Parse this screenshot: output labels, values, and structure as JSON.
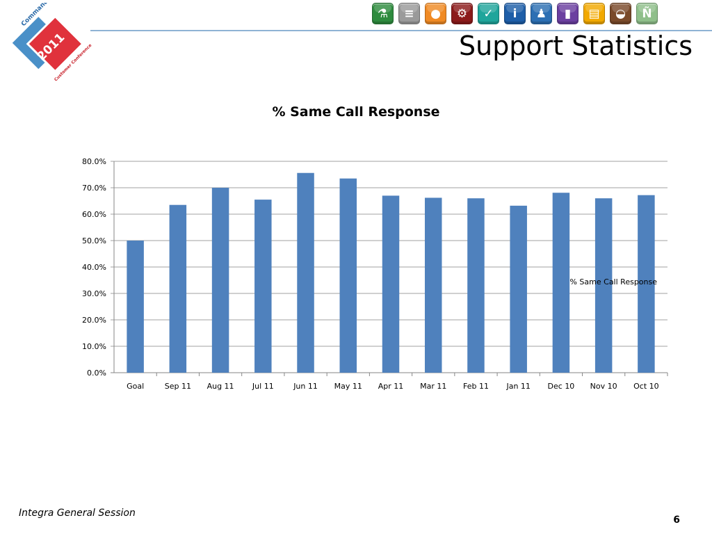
{
  "slide": {
    "title": "Support Statistics",
    "footer": "Integra General Session",
    "page_number": "6"
  },
  "logo": {
    "brand": "Command Alkon",
    "year": "2011",
    "subtitle": "Customer Conference",
    "colors": {
      "blue": "#4a90c8",
      "red": "#e0323c"
    }
  },
  "toolbar": {
    "icons": [
      {
        "name": "flask-icon",
        "color": "#2e8b3e",
        "glyph": "⚗"
      },
      {
        "name": "stack-icon",
        "color": "#9a9a9a",
        "glyph": "≡"
      },
      {
        "name": "cookie-icon",
        "color": "#f08a24",
        "glyph": "●"
      },
      {
        "name": "gears-icon",
        "color": "#8b1a1a",
        "glyph": "⚙"
      },
      {
        "name": "check-icon",
        "color": "#1fa59b",
        "glyph": "✓"
      },
      {
        "name": "info-icon",
        "color": "#1e5ea8",
        "glyph": "i"
      },
      {
        "name": "person-icon",
        "color": "#2c6fb3",
        "glyph": "♟"
      },
      {
        "name": "doors-icon",
        "color": "#6b3fa0",
        "glyph": "▮"
      },
      {
        "name": "window-icon",
        "color": "#f2a900",
        "glyph": "▤"
      },
      {
        "name": "hardhat-icon",
        "color": "#7a4a2a",
        "glyph": "◒"
      },
      {
        "name": "n-tilde-icon",
        "color": "#8fbf8a",
        "glyph": "Ñ"
      }
    ]
  },
  "chart_data": {
    "type": "bar",
    "title": "% Same Call Response",
    "categories": [
      "Goal",
      "Sep 11",
      "Aug 11",
      "Jul 11",
      "Jun 11",
      "May 11",
      "Apr 11",
      "Mar 11",
      "Feb 11",
      "Jan 11",
      "Dec 10",
      "Nov 10",
      "Oct 10"
    ],
    "series": [
      {
        "name": "% Same Call Response",
        "values": [
          50.0,
          63.5,
          70.0,
          65.5,
          75.6,
          73.5,
          67.0,
          66.2,
          66.0,
          63.2,
          68.1,
          66.0,
          67.2
        ],
        "color": "#4f81bd"
      }
    ],
    "ylim": [
      0,
      80
    ],
    "yticks": [
      "0.0%",
      "10.0%",
      "20.0%",
      "30.0%",
      "40.0%",
      "50.0%",
      "60.0%",
      "70.0%",
      "80.0%"
    ],
    "grid": true,
    "legend_position": "right",
    "xlabel": "",
    "ylabel": ""
  }
}
